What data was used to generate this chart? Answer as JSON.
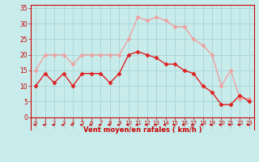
{
  "hours": [
    0,
    1,
    2,
    3,
    4,
    5,
    6,
    7,
    8,
    9,
    10,
    11,
    12,
    13,
    14,
    15,
    16,
    17,
    18,
    19,
    20,
    21,
    22,
    23
  ],
  "wind_mean": [
    10,
    14,
    11,
    14,
    10,
    14,
    14,
    14,
    11,
    14,
    20,
    21,
    20,
    19,
    17,
    17,
    15,
    14,
    10,
    8,
    4,
    4,
    7,
    5
  ],
  "wind_gust": [
    15,
    20,
    20,
    20,
    17,
    20,
    20,
    20,
    20,
    20,
    25,
    32,
    31,
    32,
    31,
    29,
    29,
    25,
    23,
    20,
    10,
    15,
    6,
    6
  ],
  "mean_color": "#dd2020",
  "gust_color": "#f0a0a0",
  "bg_color": "#c8ecec",
  "grid_color": "#a8d4d4",
  "xlabel": "Vent moyen/en rafales ( km/h )",
  "ylabel_ticks": [
    0,
    5,
    10,
    15,
    20,
    25,
    30,
    35
  ],
  "ylim": [
    -4,
    36
  ],
  "xlim": [
    -0.5,
    23.5
  ],
  "axis_color": "#cc0000",
  "arrow_color": "#cc0000",
  "marker": "D",
  "markersize": 2.5,
  "linewidth": 1.0
}
